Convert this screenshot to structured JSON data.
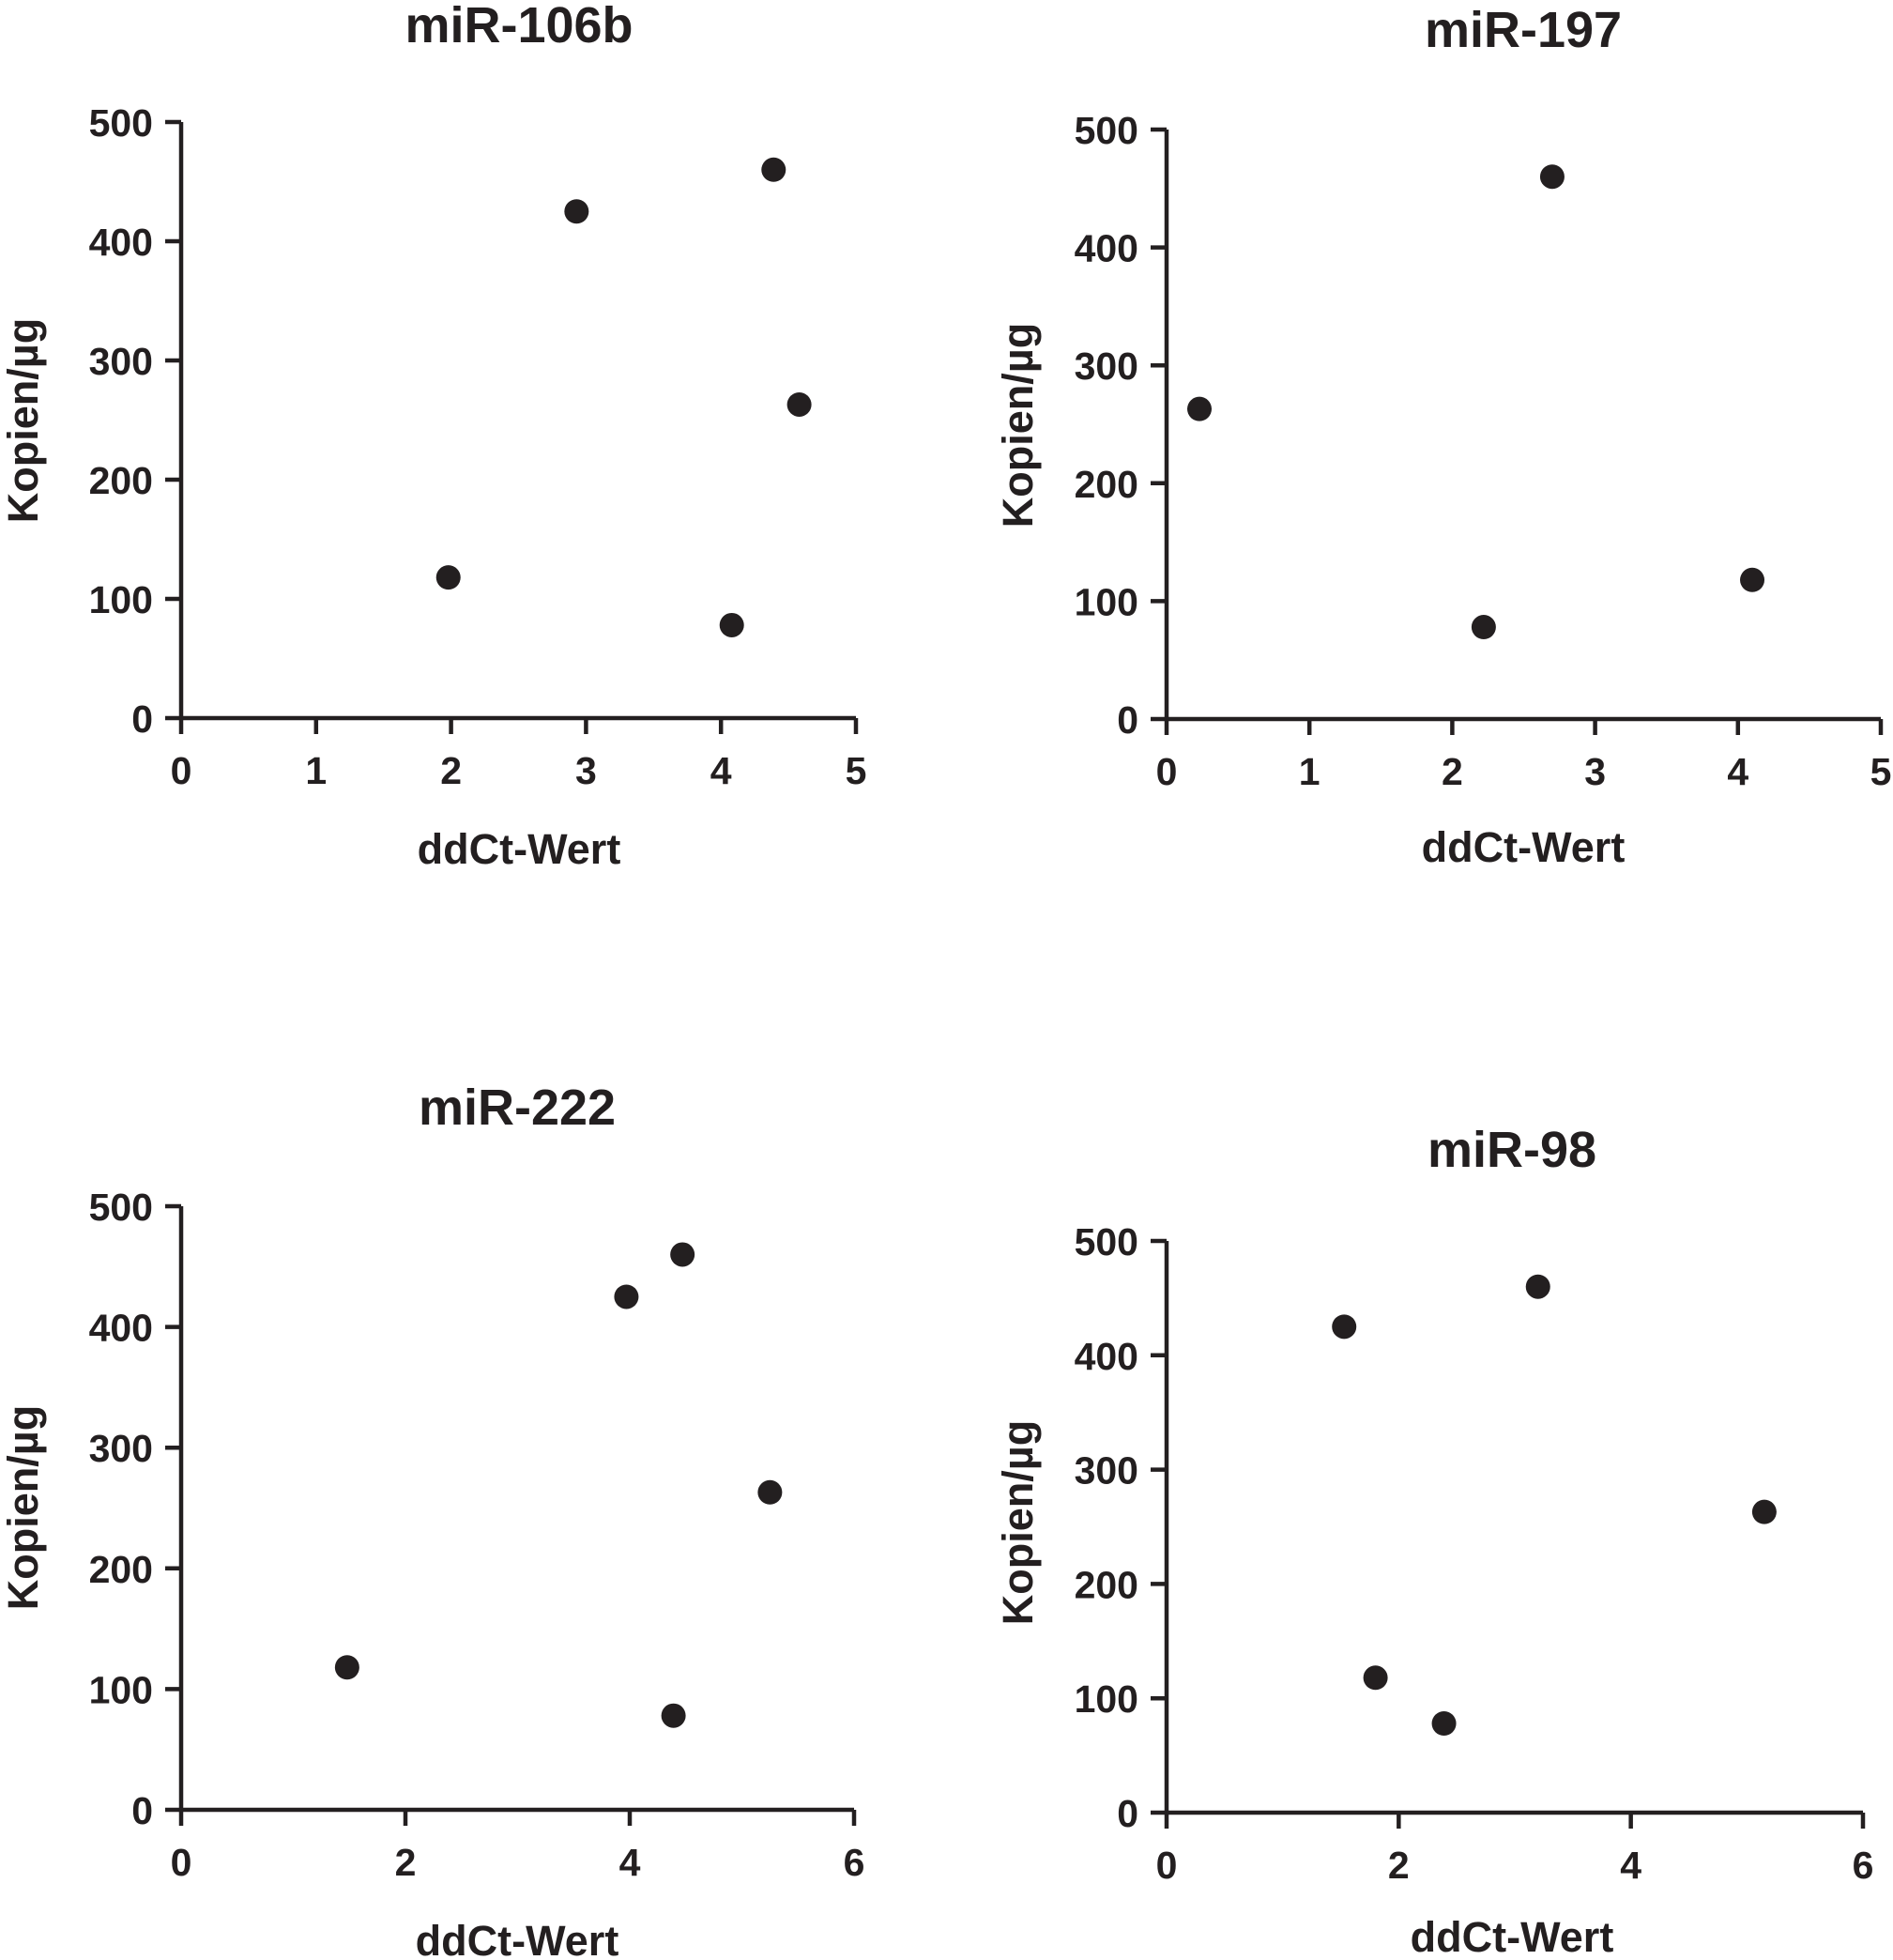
{
  "chart_data": [
    {
      "type": "scatter",
      "title": "miR-106b",
      "xlabel": "ddCt-Wert",
      "ylabel": "Kopien/µg",
      "xlim": [
        0,
        5
      ],
      "ylim": [
        0,
        500
      ],
      "xticks": [
        "0",
        "1",
        "2",
        "3",
        "4",
        "5"
      ],
      "yticks": [
        "0",
        "100",
        "200",
        "300",
        "400",
        "500"
      ],
      "points": [
        {
          "x": 1.98,
          "y": 118
        },
        {
          "x": 2.93,
          "y": 425
        },
        {
          "x": 4.08,
          "y": 78
        },
        {
          "x": 4.39,
          "y": 460
        },
        {
          "x": 4.58,
          "y": 263
        }
      ]
    },
    {
      "type": "scatter",
      "title": "miR-197",
      "xlabel": "ddCt-Wert",
      "ylabel": "Kopien/µg",
      "xlim": [
        0,
        5
      ],
      "ylim": [
        0,
        500
      ],
      "xticks": [
        "0",
        "1",
        "2",
        "3",
        "4",
        "5"
      ],
      "yticks": [
        "0",
        "100",
        "200",
        "300",
        "400",
        "500"
      ],
      "points": [
        {
          "x": 0.23,
          "y": 263
        },
        {
          "x": 2.22,
          "y": 78
        },
        {
          "x": 2.7,
          "y": 460
        },
        {
          "x": 4.1,
          "y": 118
        }
      ]
    },
    {
      "type": "scatter",
      "title": "miR-222",
      "xlabel": "ddCt-Wert",
      "ylabel": "Kopien/µg",
      "xlim": [
        0,
        6
      ],
      "ylim": [
        0,
        500
      ],
      "xticks": [
        "0",
        "2",
        "4",
        "6"
      ],
      "yticks": [
        "0",
        "100",
        "200",
        "300",
        "400",
        "500"
      ],
      "points": [
        {
          "x": 1.48,
          "y": 118
        },
        {
          "x": 3.97,
          "y": 425
        },
        {
          "x": 4.39,
          "y": 78
        },
        {
          "x": 4.47,
          "y": 460
        },
        {
          "x": 5.25,
          "y": 263
        }
      ]
    },
    {
      "type": "scatter",
      "title": "miR-98",
      "xlabel": "ddCt-Wert",
      "ylabel": "Kopien/µg",
      "xlim": [
        0,
        6
      ],
      "ylim": [
        0,
        500
      ],
      "xticks": [
        "0",
        "2",
        "4",
        "6"
      ],
      "yticks": [
        "0",
        "100",
        "200",
        "300",
        "400",
        "500"
      ],
      "points": [
        {
          "x": 1.53,
          "y": 425
        },
        {
          "x": 1.8,
          "y": 118
        },
        {
          "x": 2.39,
          "y": 78
        },
        {
          "x": 3.2,
          "y": 460
        },
        {
          "x": 5.15,
          "y": 263
        }
      ]
    }
  ],
  "colors": {
    "ink": "#231f20",
    "background": "#ffffff"
  }
}
